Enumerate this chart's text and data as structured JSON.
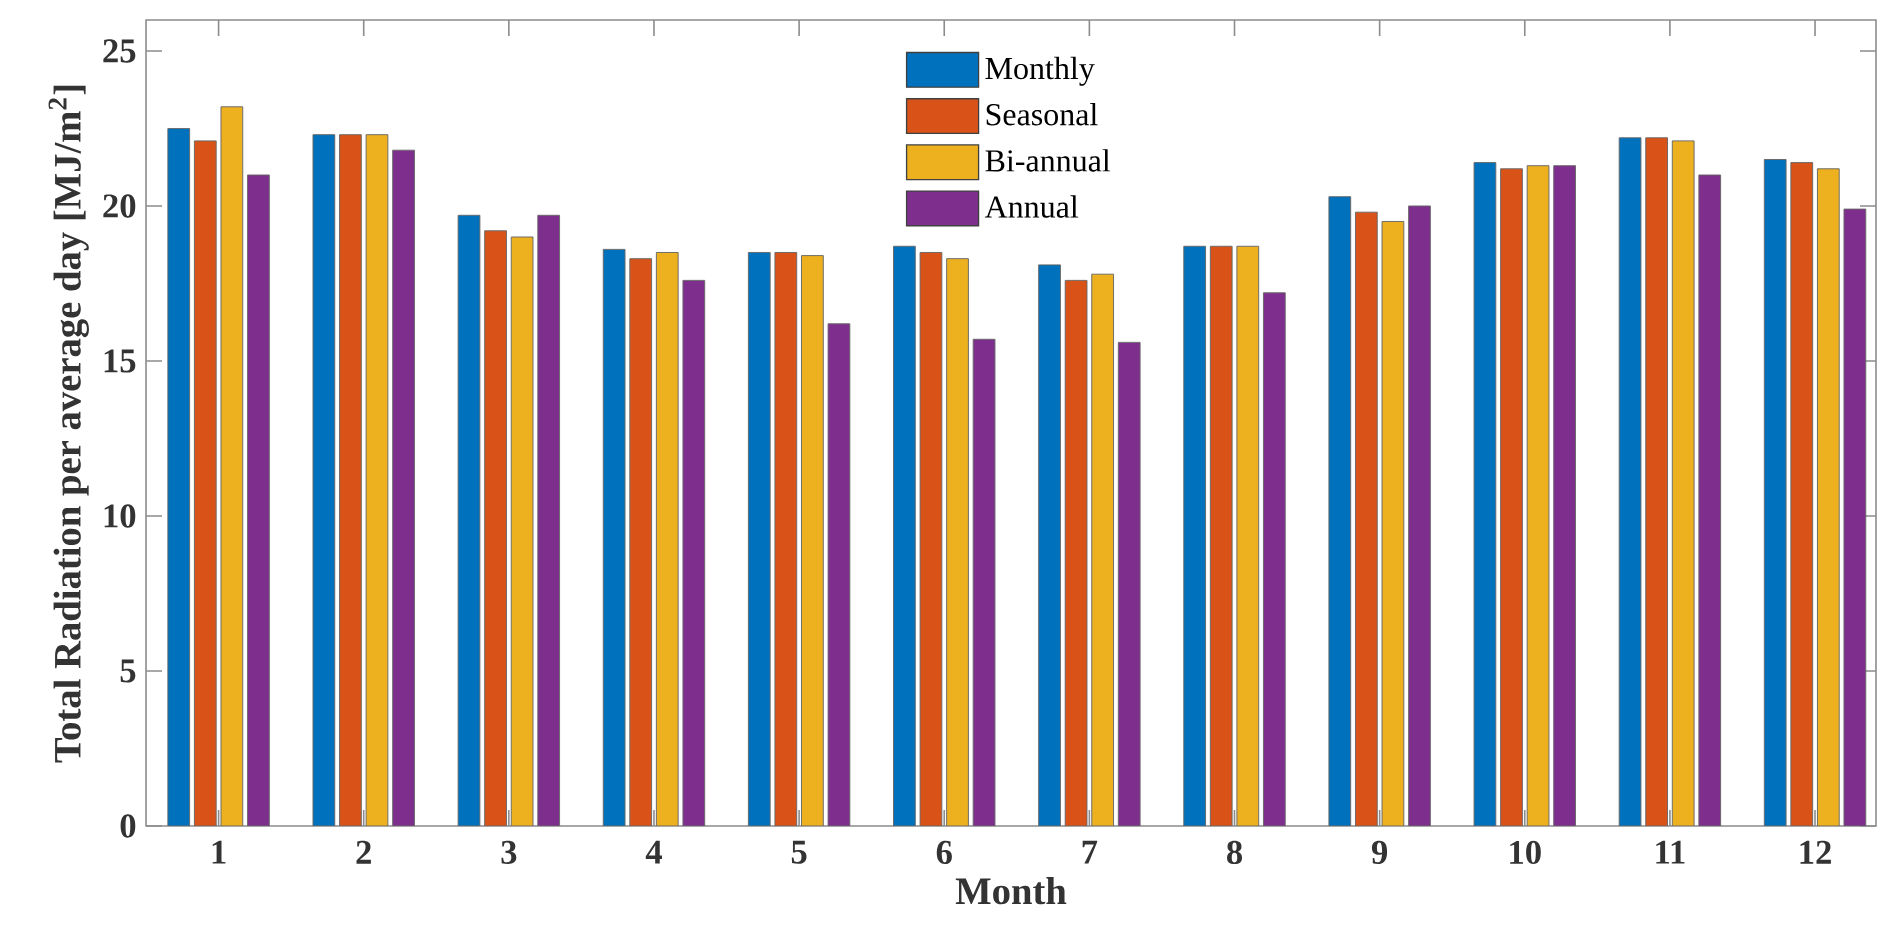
{
  "chart_data": {
    "type": "bar",
    "xlabel": "Month",
    "ylabel": "Total Radiation per average day [MJ/m$^{2}$]",
    "categories": [
      "1",
      "2",
      "3",
      "4",
      "5",
      "6",
      "7",
      "8",
      "9",
      "10",
      "11",
      "12"
    ],
    "series": [
      {
        "name": "Monthly",
        "color": "#0072bd",
        "values": [
          22.5,
          22.3,
          19.7,
          18.6,
          18.5,
          18.7,
          18.1,
          18.7,
          20.3,
          21.4,
          22.2,
          21.5
        ]
      },
      {
        "name": "Seasonal",
        "color": "#d95319",
        "values": [
          22.1,
          22.3,
          19.2,
          18.3,
          18.5,
          18.5,
          17.6,
          18.7,
          19.8,
          21.2,
          22.2,
          21.4
        ]
      },
      {
        "name": "Bi-annual",
        "color": "#edb120",
        "values": [
          23.2,
          22.3,
          19.0,
          18.5,
          18.4,
          18.3,
          17.8,
          18.7,
          19.5,
          21.3,
          22.1,
          21.2
        ]
      },
      {
        "name": "Annual",
        "color": "#7e2f8e",
        "values": [
          21.0,
          21.8,
          19.7,
          17.6,
          16.2,
          15.7,
          15.6,
          17.2,
          20.0,
          21.3,
          21.0,
          19.9
        ]
      }
    ],
    "ylim": [
      0,
      26
    ],
    "yticks": [
      0,
      5,
      10,
      15,
      20,
      25
    ],
    "legend": "top"
  }
}
